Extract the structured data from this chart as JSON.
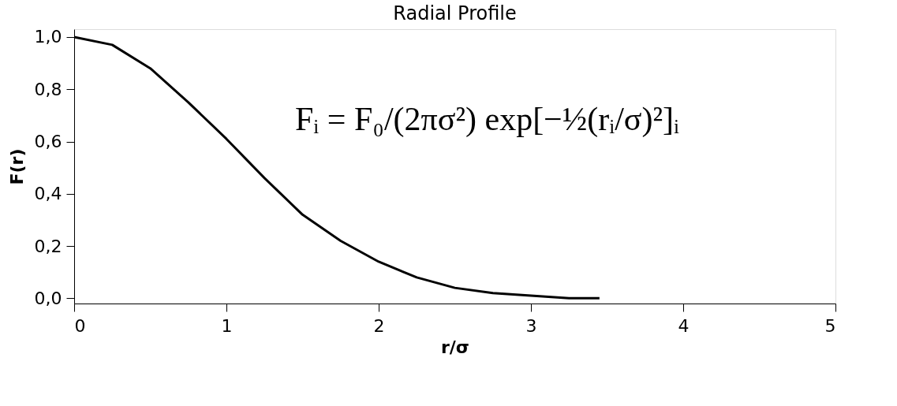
{
  "chart_data": {
    "type": "line",
    "title": "Radial Profile",
    "xlabel": "r/σ",
    "ylabel": "F(r)",
    "x": [
      0,
      0.25,
      0.5,
      0.75,
      1,
      1.25,
      1.5,
      1.75,
      2,
      2.25,
      2.5,
      2.75,
      3,
      3.25,
      3.45
    ],
    "series": [
      {
        "color": "#000000",
        "values": [
          1.0,
          0.97,
          0.88,
          0.75,
          0.61,
          0.46,
          0.32,
          0.22,
          0.14,
          0.08,
          0.04,
          0.02,
          0.01,
          0.0,
          0.0
        ]
      }
    ],
    "xlim": [
      0,
      5
    ],
    "xticks": [
      0,
      1,
      2,
      3,
      4,
      5
    ],
    "ylim": [
      -0.02,
      1.03
    ],
    "yticks": [
      {
        "value": 0,
        "label": "0,0"
      },
      {
        "value": 0.2,
        "label": "0,2"
      },
      {
        "value": 0.4,
        "label": "0,4"
      },
      {
        "value": 0.6,
        "label": "0,6"
      },
      {
        "value": 0.8,
        "label": "0,8"
      },
      {
        "value": 1.0,
        "label": "1,0"
      }
    ],
    "annotations": [
      "Fᵢ = F₀/(2πσ²) exp[−½(rᵢ/σ)²]ᵢ"
    ],
    "grid": false,
    "legend": false,
    "marker": "none",
    "line_style": "solid"
  }
}
